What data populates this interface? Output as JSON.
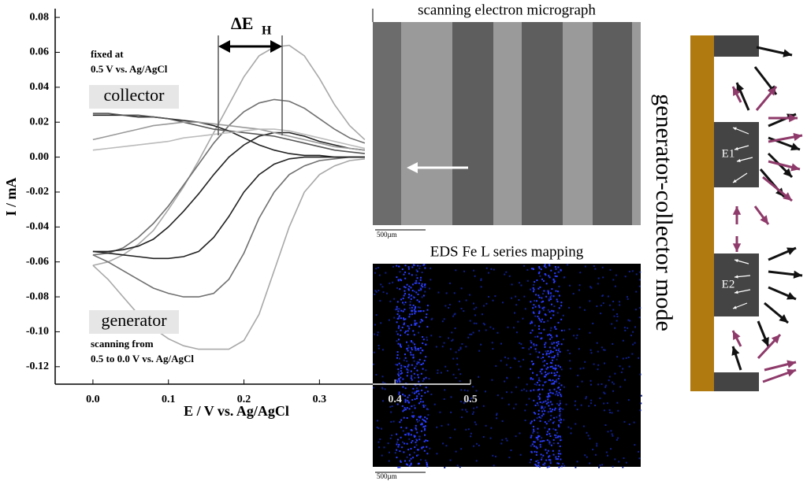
{
  "chart_data": {
    "type": "line",
    "x_label": "E / V vs. Ag/AgCl",
    "y_label": "I / mA",
    "xlim": [
      -0.05,
      0.5
    ],
    "ylim": [
      -0.13,
      0.085
    ],
    "xticks": [
      {
        "value": 0,
        "label": "0.0"
      },
      0.1,
      0.2,
      0.3,
      0.4,
      0.5
    ],
    "yticks": [
      0.08,
      0.06,
      0.04,
      0.02,
      {
        "value": 0,
        "label": "0.00"
      },
      -0.02,
      -0.04,
      -0.06,
      -0.08,
      {
        "value": -0.1,
        "label": "-0.10"
      },
      -0.12
    ],
    "x": [
      0,
      0.02,
      0.04,
      0.06,
      0.08,
      0.1,
      0.12,
      0.14,
      0.16,
      0.18,
      0.2,
      0.22,
      0.24,
      0.26,
      0.28,
      0.3,
      0.32,
      0.34,
      0.36
    ],
    "series": [
      {
        "color": "#a8a8a8",
        "values": [
          -0.062,
          -0.06,
          -0.056,
          -0.05,
          -0.042,
          -0.03,
          -0.017,
          -0.002,
          0.014,
          0.03,
          0.046,
          0.058,
          0.063,
          0.064,
          0.058,
          0.045,
          0.03,
          0.018,
          0.01
        ]
      },
      {
        "color": "#a8a8a8",
        "values": [
          -0.062,
          -0.07,
          -0.08,
          -0.09,
          -0.098,
          -0.104,
          -0.108,
          -0.11,
          -0.11,
          -0.11,
          -0.105,
          -0.09,
          -0.065,
          -0.04,
          -0.02,
          -0.01,
          -0.005,
          -0.002,
          -0.001
        ]
      },
      {
        "color": "#707070",
        "values": [
          -0.056,
          -0.06,
          -0.065,
          -0.07,
          -0.075,
          -0.078,
          -0.08,
          -0.08,
          -0.078,
          -0.07,
          -0.055,
          -0.035,
          -0.02,
          -0.01,
          -0.005,
          -0.002,
          -0.001,
          0,
          0
        ]
      },
      {
        "color": "#707070",
        "values": [
          -0.056,
          -0.055,
          -0.052,
          -0.046,
          -0.038,
          -0.028,
          -0.016,
          -0.004,
          0.008,
          0.018,
          0.026,
          0.031,
          0.033,
          0.032,
          0.028,
          0.022,
          0.016,
          0.011,
          0.008
        ]
      },
      {
        "color": "#222222",
        "values": [
          -0.054,
          -0.055,
          -0.056,
          -0.057,
          -0.058,
          -0.058,
          -0.057,
          -0.054,
          -0.046,
          -0.034,
          -0.02,
          -0.01,
          -0.004,
          -0.001,
          0,
          0,
          0,
          0,
          0
        ]
      },
      {
        "color": "#222222",
        "values": [
          -0.054,
          -0.054,
          -0.053,
          -0.051,
          -0.047,
          -0.04,
          -0.031,
          -0.021,
          -0.01,
          0,
          0.007,
          0.012,
          0.014,
          0.014,
          0.012,
          0.009,
          0.007,
          0.005,
          0.004
        ]
      },
      {
        "color": "#222222",
        "values": [
          0.024,
          0.024,
          0.024,
          0.023,
          0.023,
          0.022,
          0.021,
          0.02,
          0.018,
          0.015,
          0.011,
          0.007,
          0.004,
          0.002,
          0.001,
          0.001,
          0,
          0,
          0
        ]
      },
      {
        "color": "#555555",
        "values": [
          0.025,
          0.025,
          0.024,
          0.024,
          0.023,
          0.022,
          0.02,
          0.018,
          0.016,
          0.015,
          0.014,
          0.013,
          0.012,
          0.01,
          0.008,
          0.006,
          0.004,
          0.003,
          0.002
        ]
      },
      {
        "color": "#999999",
        "values": [
          0.01,
          0.012,
          0.014,
          0.016,
          0.018,
          0.019,
          0.02,
          0.02,
          0.019,
          0.018,
          0.017,
          0.016,
          0.014,
          0.012,
          0.01,
          0.008,
          0.006,
          0.005,
          0.004
        ]
      },
      {
        "color": "#bbbbbb",
        "values": [
          0.004,
          0.005,
          0.006,
          0.007,
          0.008,
          0.009,
          0.011,
          0.012,
          0.013,
          0.014,
          0.015,
          0.016,
          0.016,
          0.015,
          0.013,
          0.011,
          0.009,
          0.007,
          0.005
        ]
      }
    ],
    "annotations": {
      "delta": "ΔE",
      "delta_sub": "H",
      "fixed": "fixed at",
      "fixed_potential": "0.5 V vs. Ag/AgCl",
      "collector": "collector",
      "generator": "generator",
      "scanning": "scanning from",
      "scan_range": "0.5 to 0.0 V vs. Ag/AgCl"
    }
  },
  "micrograph": {
    "title": "scanning electron micrograph",
    "scale_bar": "500µm"
  },
  "eds_map": {
    "title": "EDS Fe L series mapping",
    "scale_bar": "500µm"
  },
  "diagram": {
    "title": "generator-collector mode",
    "electrodes": [
      "E1",
      "E2"
    ]
  }
}
